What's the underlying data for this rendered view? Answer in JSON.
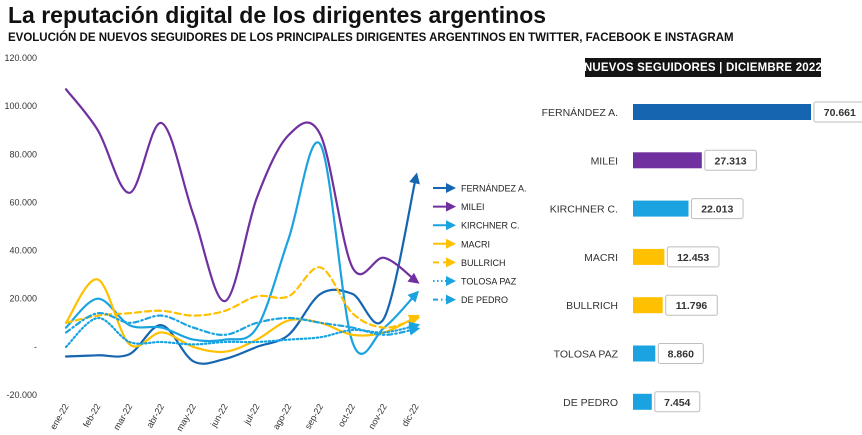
{
  "title": "La reputación digital de los dirigentes argentinos",
  "subtitle": "EVOLUCIÓN DE NUEVOS SEGUIDORES DE LOS PRINCIPALES DIRIGENTES ARGENTINOS EN TWITTER, FACEBOOK E INSTAGRAM",
  "chart_data": [
    {
      "type": "line",
      "x": [
        "ene-22",
        "feb-22",
        "mar-22",
        "abr-22",
        "may-22",
        "jun-22",
        "jul-22",
        "ago-22",
        "sep-22",
        "oct-22",
        "nov-22",
        "dic-22"
      ],
      "ylim": [
        -20000,
        120000
      ],
      "yticks": [
        -20000,
        0,
        20000,
        40000,
        60000,
        80000,
        100000,
        120000
      ],
      "ytick_labels": [
        "-20.000",
        "-",
        "20.000",
        "40.000",
        "60.000",
        "80.000",
        "100.000",
        "120.000"
      ],
      "legend_position": "right",
      "series": [
        {
          "name": "FERNÁNDEZ A.",
          "color": "#1565b0",
          "style": "solid",
          "values": [
            -4000,
            -3500,
            -3000,
            9000,
            -6000,
            -5000,
            0,
            5000,
            22000,
            22000,
            12000,
            70661
          ]
        },
        {
          "name": "MILEI",
          "color": "#7030a0",
          "style": "solid",
          "values": [
            107000,
            90000,
            64000,
            93000,
            55000,
            19000,
            62000,
            88000,
            88000,
            33000,
            37000,
            27313
          ]
        },
        {
          "name": "KIRCHNER C.",
          "color": "#1aa3e0",
          "style": "solid",
          "values": [
            8000,
            20000,
            9000,
            8000,
            3000,
            3000,
            8000,
            45000,
            84000,
            2000,
            8000,
            22013
          ]
        },
        {
          "name": "MACRI",
          "color": "#ffc000",
          "style": "solid",
          "values": [
            10000,
            28000,
            1000,
            6000,
            0,
            -2000,
            3000,
            11000,
            10000,
            5000,
            6000,
            12453
          ]
        },
        {
          "name": "BULLRICH",
          "color": "#ffc000",
          "style": "dash",
          "values": [
            10000,
            13000,
            14000,
            15000,
            13000,
            15000,
            21000,
            21000,
            33000,
            14000,
            8000,
            11796
          ]
        },
        {
          "name": "TOLOSA PAZ",
          "color": "#1aa3e0",
          "style": "dot",
          "values": [
            0,
            12000,
            2000,
            2000,
            1000,
            2000,
            2000,
            3000,
            4000,
            7000,
            6000,
            8860
          ]
        },
        {
          "name": "DE PEDRO",
          "color": "#1aa3e0",
          "style": "dashdot",
          "values": [
            6000,
            14000,
            10000,
            13000,
            8000,
            5000,
            10000,
            12000,
            10000,
            8000,
            5000,
            7454
          ]
        }
      ]
    },
    {
      "type": "bar",
      "orientation": "horizontal",
      "title": "NUEVOS SEGUIDORES | DICIEMBRE 2022",
      "categories": [
        "FERNÁNDEZ A.",
        "MILEI",
        "KIRCHNER C.",
        "MACRI",
        "BULLRICH",
        "TOLOSA PAZ",
        "DE PEDRO"
      ],
      "values": [
        70661,
        27313,
        22013,
        12453,
        11796,
        8860,
        7454
      ],
      "value_labels": [
        "70.661",
        "27.313",
        "22.013",
        "12.453",
        "11.796",
        "8.860",
        "7.454"
      ],
      "colors": [
        "#1565b0",
        "#7030a0",
        "#1aa3e0",
        "#ffc000",
        "#ffc000",
        "#1aa3e0",
        "#1aa3e0"
      ]
    }
  ]
}
